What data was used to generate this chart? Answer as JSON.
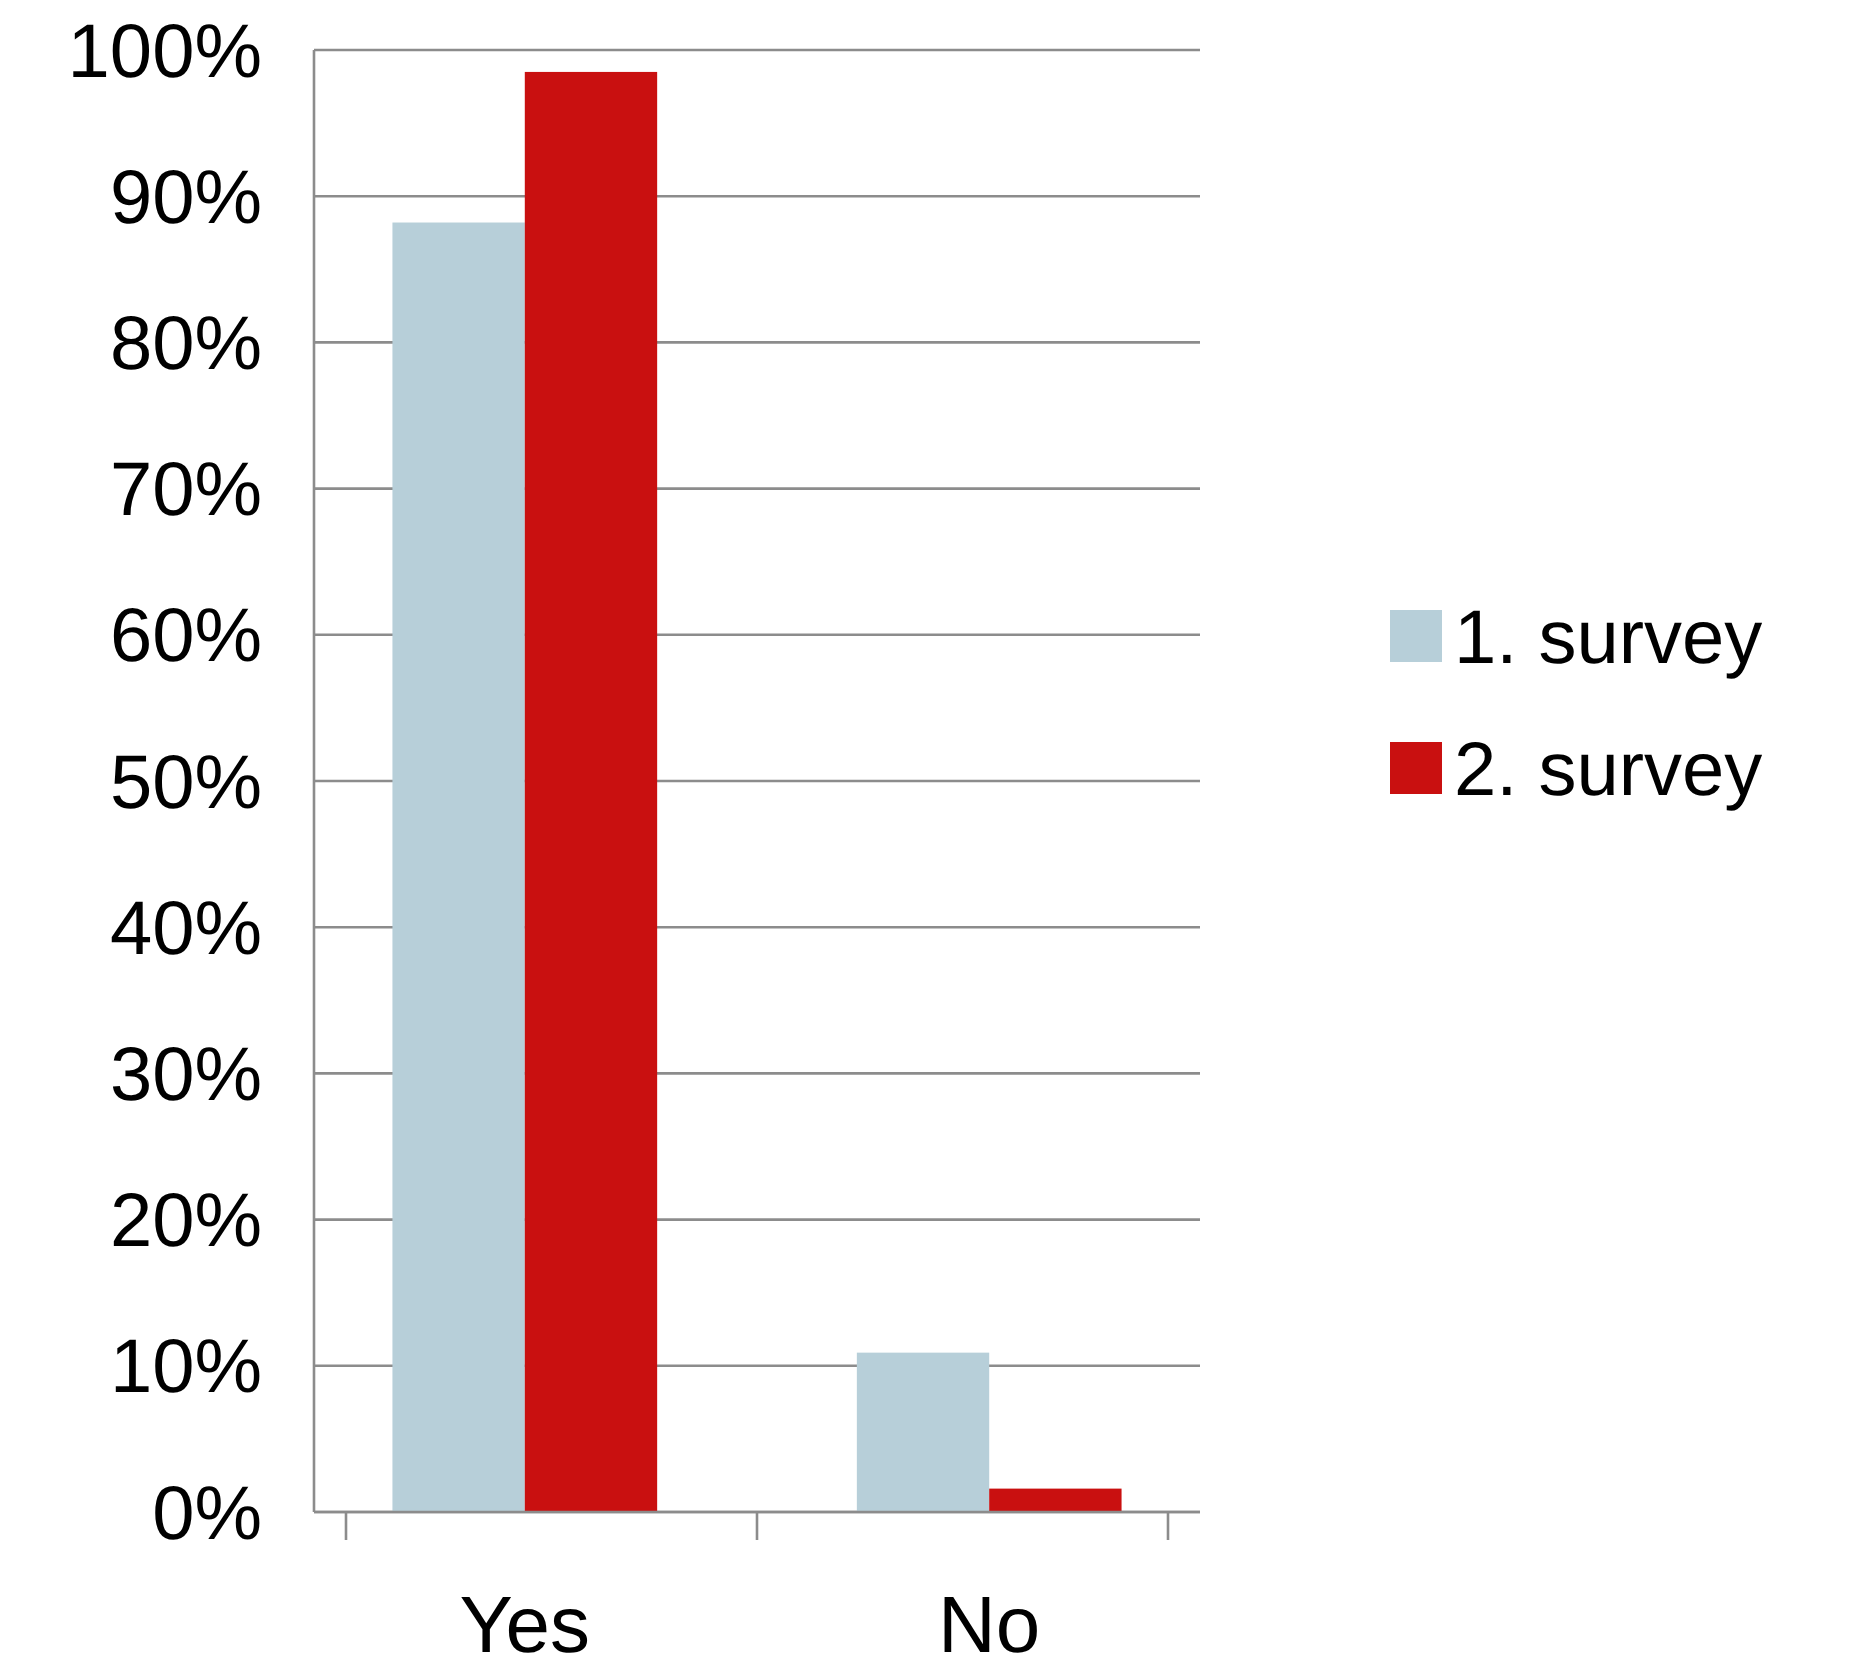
{
  "chart_data": {
    "type": "bar",
    "categories": [
      "Yes",
      "No"
    ],
    "series": [
      {
        "name": "1. survey",
        "color": "#b7cfd9",
        "values": [
          88.2,
          10.9
        ]
      },
      {
        "name": "2. survey",
        "color": "#c91010",
        "values": [
          98.5,
          1.6
        ]
      }
    ],
    "ylim": [
      0,
      100
    ],
    "yticks": [
      {
        "value": 0,
        "label": "0%"
      },
      {
        "value": 10,
        "label": "10%"
      },
      {
        "value": 20,
        "label": "20%"
      },
      {
        "value": 30,
        "label": "30%"
      },
      {
        "value": 40,
        "label": "40%"
      },
      {
        "value": 50,
        "label": "50%"
      },
      {
        "value": 60,
        "label": "60%"
      },
      {
        "value": 70,
        "label": "70%"
      },
      {
        "value": 80,
        "label": "80%"
      },
      {
        "value": 90,
        "label": "90%"
      },
      {
        "value": 100,
        "label": "100%"
      }
    ],
    "grid": "y",
    "legend": "right"
  }
}
